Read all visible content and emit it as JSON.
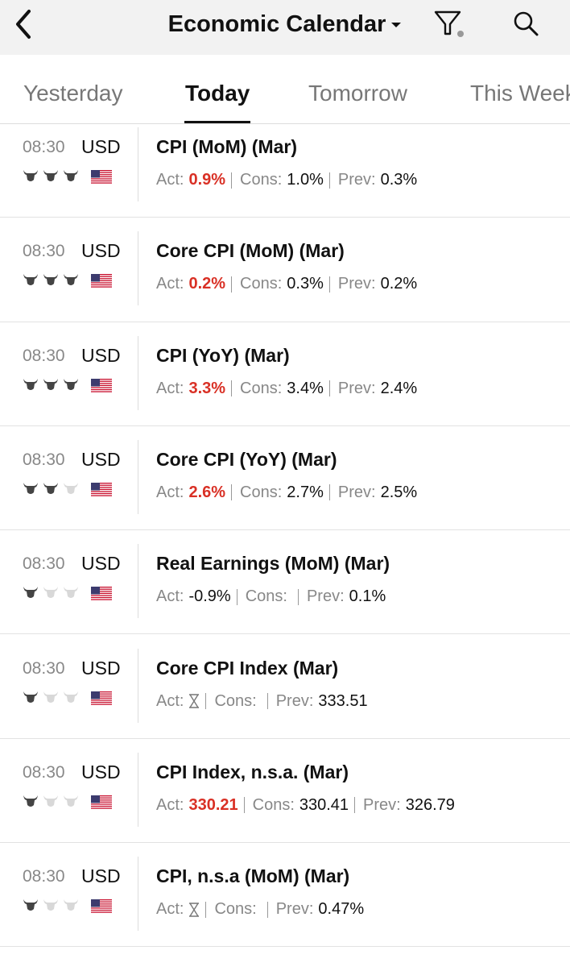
{
  "header": {
    "title": "Economic Calendar"
  },
  "tabs": [
    "Yesterday",
    "Today",
    "Tomorrow",
    "This Week"
  ],
  "active_tab": 1,
  "labels": {
    "actual": "Act:",
    "consensus": "Cons:",
    "previous": "Prev:"
  },
  "events": [
    {
      "time": "08:30",
      "currency": "USD",
      "importance": 3,
      "name": "CPI (MoM) (Mar)",
      "actual": "0.9%",
      "actual_color": "#d93025",
      "consensus": "1.0%",
      "previous": "0.3%"
    },
    {
      "time": "08:30",
      "currency": "USD",
      "importance": 3,
      "name": "Core CPI (MoM) (Mar)",
      "actual": "0.2%",
      "actual_color": "#d93025",
      "consensus": "0.3%",
      "previous": "0.2%"
    },
    {
      "time": "08:30",
      "currency": "USD",
      "importance": 3,
      "name": "CPI (YoY) (Mar)",
      "actual": "3.3%",
      "actual_color": "#d93025",
      "consensus": "3.4%",
      "previous": "2.4%"
    },
    {
      "time": "08:30",
      "currency": "USD",
      "importance": 2,
      "name": "Core CPI (YoY) (Mar)",
      "actual": "2.6%",
      "actual_color": "#d93025",
      "consensus": "2.7%",
      "previous": "2.5%"
    },
    {
      "time": "08:30",
      "currency": "USD",
      "importance": 1,
      "name": "Real Earnings (MoM) (Mar)",
      "actual": "-0.9%",
      "actual_color": "#111111",
      "consensus": null,
      "previous": "0.1%"
    },
    {
      "time": "08:30",
      "currency": "USD",
      "importance": 1,
      "name": "Core CPI Index (Mar)",
      "actual": null,
      "actual_color": "#111111",
      "consensus": null,
      "previous": "333.51"
    },
    {
      "time": "08:30",
      "currency": "USD",
      "importance": 1,
      "name": "CPI Index, n.s.a. (Mar)",
      "actual": "330.21",
      "actual_color": "#d93025",
      "consensus": "330.41",
      "previous": "326.79"
    },
    {
      "time": "08:30",
      "currency": "USD",
      "importance": 1,
      "name": "CPI, n.s.a (MoM) (Mar)",
      "actual": null,
      "actual_color": "#111111",
      "consensus": null,
      "previous": "0.47%"
    }
  ]
}
